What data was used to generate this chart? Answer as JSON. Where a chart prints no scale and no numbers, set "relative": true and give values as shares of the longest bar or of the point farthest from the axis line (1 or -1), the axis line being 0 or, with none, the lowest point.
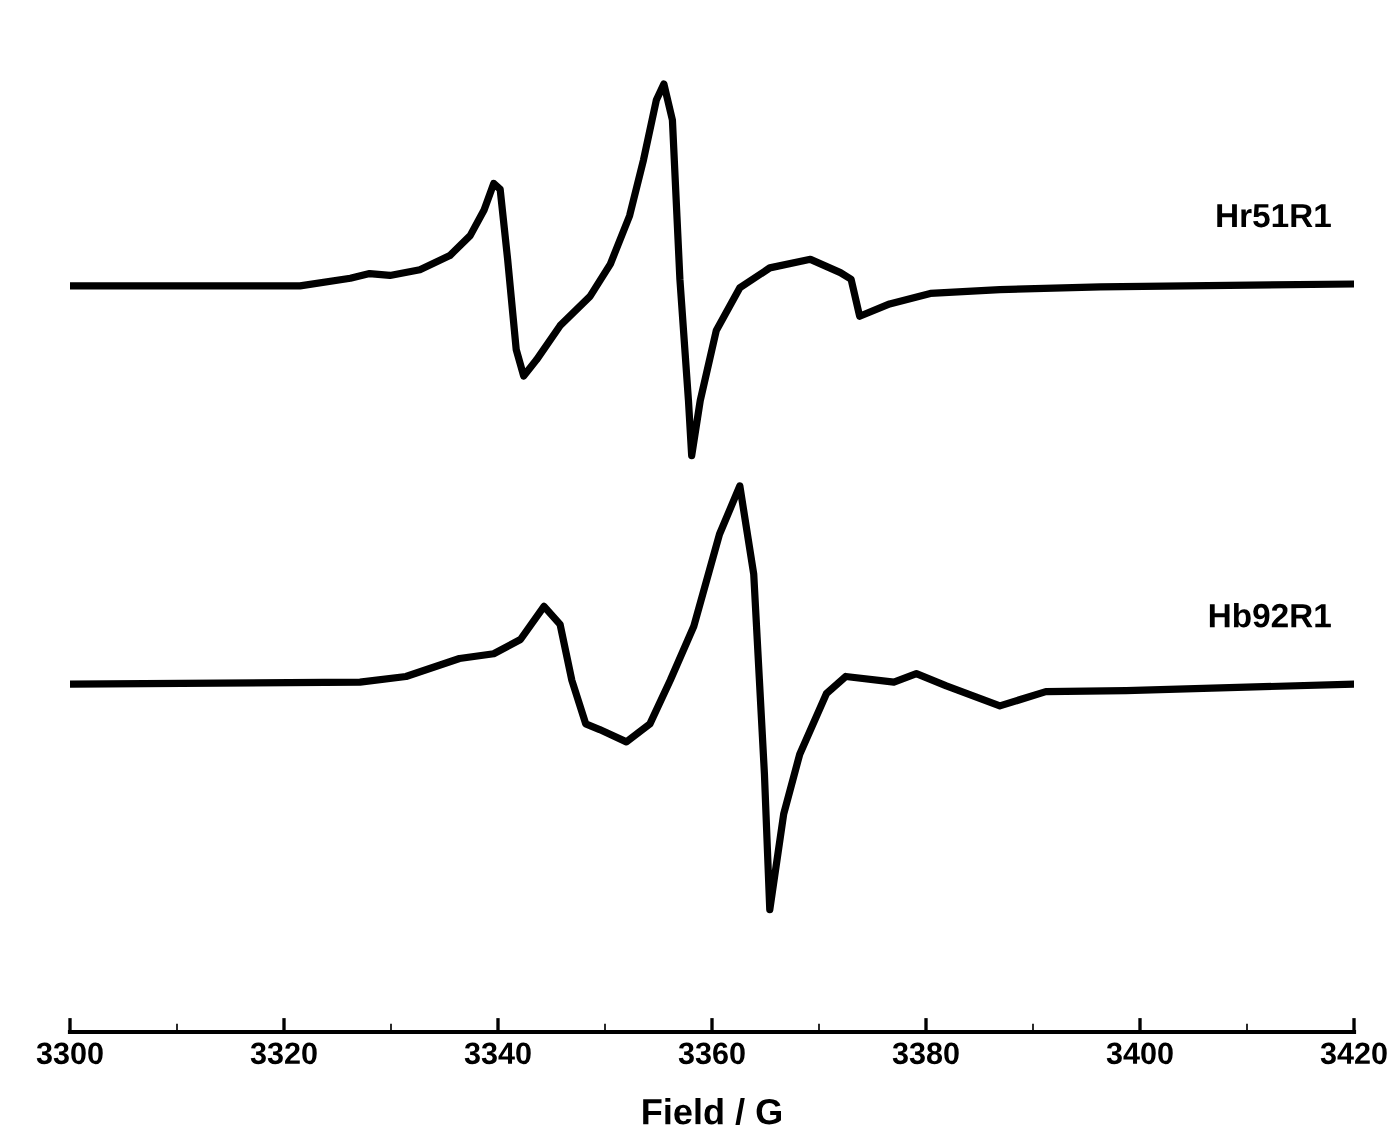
{
  "chart_data": {
    "type": "line",
    "relative": true,
    "xlabel": "Field / G",
    "xlim": [
      3300,
      3420
    ],
    "xticks": [
      3300,
      3320,
      3340,
      3360,
      3380,
      3400,
      3420
    ],
    "grid": false,
    "legend": false,
    "marker": "none",
    "line_style": "solid",
    "tick_labels": "x",
    "series": [
      {
        "name": "Hr51R1",
        "color": "#000000",
        "x": [
          3300,
          3321.5,
          3326.2,
          3328.0,
          3329.9,
          3332.7,
          3335.5,
          3337.4,
          3338.7,
          3339.6,
          3340.2,
          3340.9,
          3341.7,
          3342.4,
          3343.6,
          3345.8,
          3348.6,
          3350.5,
          3352.3,
          3353.6,
          3354.8,
          3355.5,
          3356.3,
          3357.0,
          3357.8,
          3358.1,
          3358.9,
          3360.4,
          3362.6,
          3365.4,
          3369.2,
          3372.0,
          3373.0,
          3373.8,
          3376.6,
          3380.4,
          3386.9,
          3396.3,
          3420
        ],
        "values": [
          0.787,
          0.787,
          0.795,
          0.8,
          0.798,
          0.804,
          0.819,
          0.84,
          0.867,
          0.895,
          0.889,
          0.815,
          0.72,
          0.692,
          0.709,
          0.745,
          0.776,
          0.81,
          0.861,
          0.92,
          0.983,
          1.0,
          0.962,
          0.794,
          0.666,
          0.608,
          0.666,
          0.74,
          0.785,
          0.806,
          0.815,
          0.801,
          0.794,
          0.755,
          0.768,
          0.779,
          0.783,
          0.786,
          0.789
        ]
      },
      {
        "name": "Hb92R1",
        "color": "#000000",
        "x": [
          3300,
          3327.1,
          3331.4,
          3336.4,
          3339.6,
          3342.1,
          3344.3,
          3345.8,
          3346.9,
          3348.2,
          3349.5,
          3352.0,
          3354.2,
          3356.1,
          3358.3,
          3360.7,
          3362.6,
          3363.9,
          3364.9,
          3365.4,
          3366.7,
          3368.2,
          3370.7,
          3372.5,
          3377.0,
          3379.1,
          3381.9,
          3386.9,
          3391.2,
          3398.7,
          3420
        ],
        "values": [
          0.367,
          0.369,
          0.375,
          0.394,
          0.399,
          0.414,
          0.449,
          0.43,
          0.371,
          0.325,
          0.319,
          0.306,
          0.325,
          0.371,
          0.428,
          0.525,
          0.576,
          0.483,
          0.272,
          0.129,
          0.23,
          0.293,
          0.357,
          0.375,
          0.369,
          0.378,
          0.365,
          0.344,
          0.359,
          0.36,
          0.367
        ]
      }
    ]
  }
}
